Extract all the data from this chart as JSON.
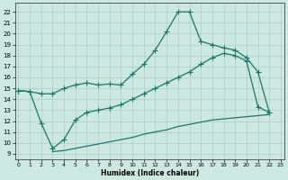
{
  "xlabel": "Humidex (Indice chaleur)",
  "bg_color": "#cce8e0",
  "grid_color": "#a8cfc8",
  "line_color": "#1a7868",
  "xticks": [
    0,
    1,
    2,
    3,
    4,
    5,
    6,
    7,
    8,
    9,
    10,
    11,
    12,
    13,
    14,
    15,
    16,
    17,
    18,
    19,
    20,
    21,
    22,
    23
  ],
  "yticks": [
    9,
    10,
    11,
    12,
    13,
    14,
    15,
    16,
    17,
    18,
    19,
    20,
    21,
    22
  ],
  "xlim": [
    -0.3,
    23.3
  ],
  "ylim": [
    8.5,
    22.8
  ],
  "line1_x": [
    0,
    1,
    2,
    3,
    4,
    5,
    6,
    7,
    8,
    9,
    10,
    11,
    12,
    13,
    14,
    15,
    16,
    17,
    18,
    19,
    20,
    21,
    22
  ],
  "line1_y": [
    14.8,
    14.7,
    14.5,
    14.5,
    15.0,
    15.3,
    15.5,
    15.3,
    15.4,
    15.3,
    16.3,
    17.2,
    18.5,
    20.2,
    22.0,
    22.0,
    19.3,
    19.0,
    18.7,
    18.5,
    17.8,
    16.5,
    12.8
  ],
  "line2_x": [
    0,
    1,
    2,
    3,
    4,
    5,
    6,
    7,
    8,
    9,
    10,
    11,
    12,
    13,
    14,
    15,
    16,
    17,
    18,
    19,
    20,
    21,
    22
  ],
  "line2_y": [
    14.8,
    14.7,
    11.8,
    9.5,
    10.3,
    12.1,
    12.8,
    13.0,
    13.2,
    13.5,
    14.0,
    14.5,
    15.0,
    15.5,
    16.0,
    16.5,
    17.2,
    17.8,
    18.2,
    18.0,
    17.5,
    13.3,
    12.8
  ],
  "line3_x": [
    3,
    4,
    5,
    6,
    7,
    8,
    9,
    10,
    11,
    12,
    13,
    14,
    15,
    16,
    17,
    18,
    19,
    20,
    21,
    22
  ],
  "line3_y": [
    9.2,
    9.3,
    9.5,
    9.7,
    9.9,
    10.1,
    10.3,
    10.5,
    10.8,
    11.0,
    11.2,
    11.5,
    11.7,
    11.9,
    12.1,
    12.2,
    12.3,
    12.4,
    12.5,
    12.6
  ]
}
